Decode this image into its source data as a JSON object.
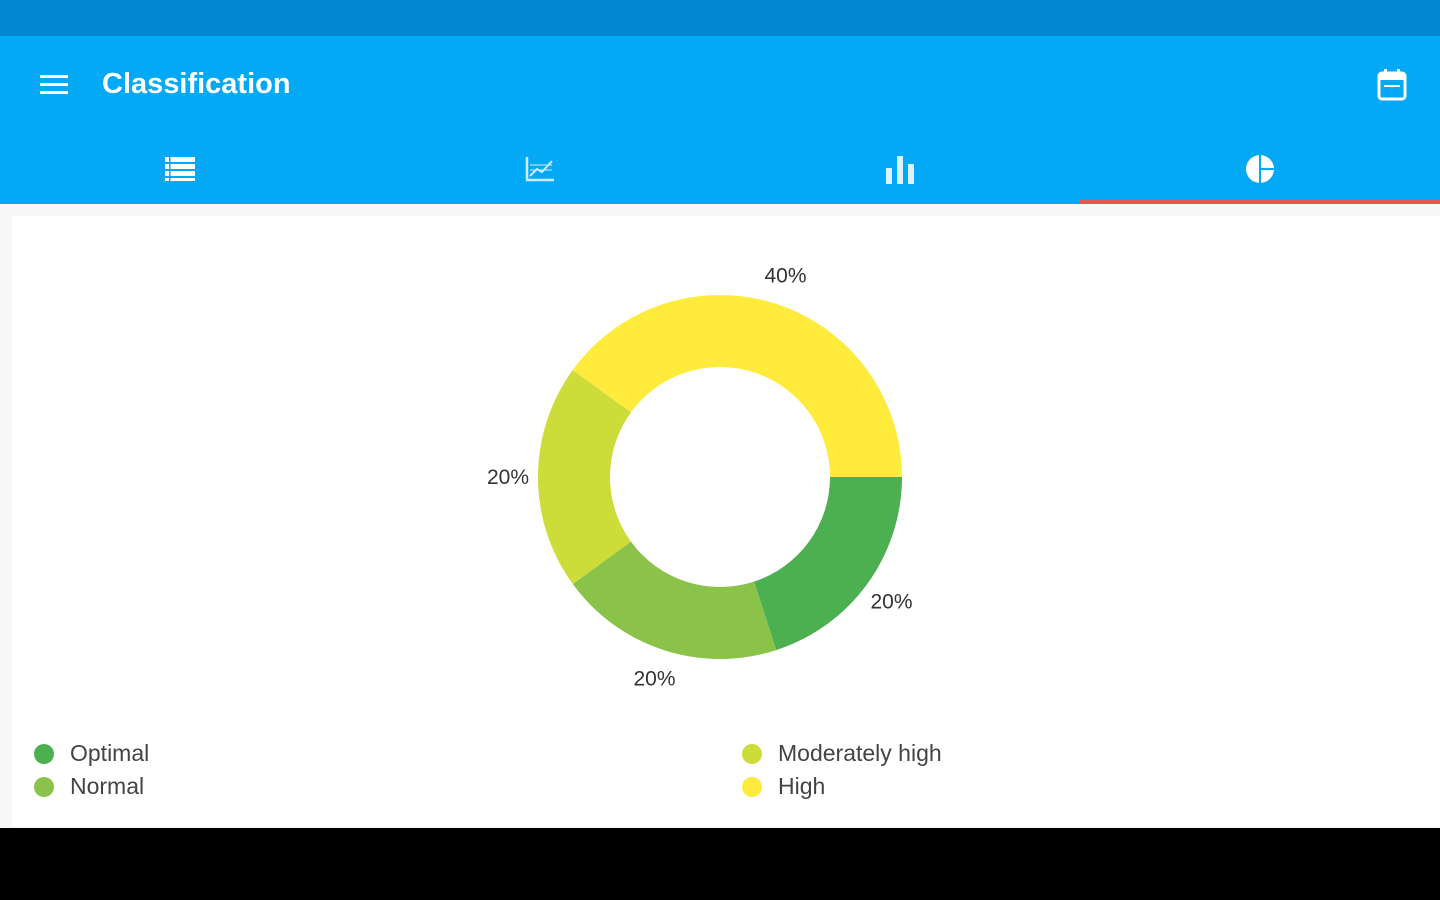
{
  "header": {
    "title": "Classification",
    "menu_icon": "menu-icon",
    "action_icon": "calendar-icon"
  },
  "tabs": [
    {
      "icon": "list-icon"
    },
    {
      "icon": "line-chart-icon"
    },
    {
      "icon": "bar-chart-icon"
    },
    {
      "icon": "pie-chart-icon",
      "active": true
    }
  ],
  "colors": {
    "status_bar": "#0288d1",
    "app_bar": "#03a9f4",
    "tab_indicator": "#ef5350"
  },
  "chart_data": {
    "type": "pie",
    "donut": true,
    "legend_position": "bottom",
    "series": [
      {
        "name": "Optimal",
        "value": 20,
        "label": "20%",
        "color": "#4caf50"
      },
      {
        "name": "Normal",
        "value": 20,
        "label": "20%",
        "color": "#8bc34a"
      },
      {
        "name": "Moderately high",
        "value": 20,
        "label": "20%",
        "color": "#cddc39"
      },
      {
        "name": "High",
        "value": 40,
        "label": "40%",
        "color": "#ffeb3b"
      }
    ]
  }
}
